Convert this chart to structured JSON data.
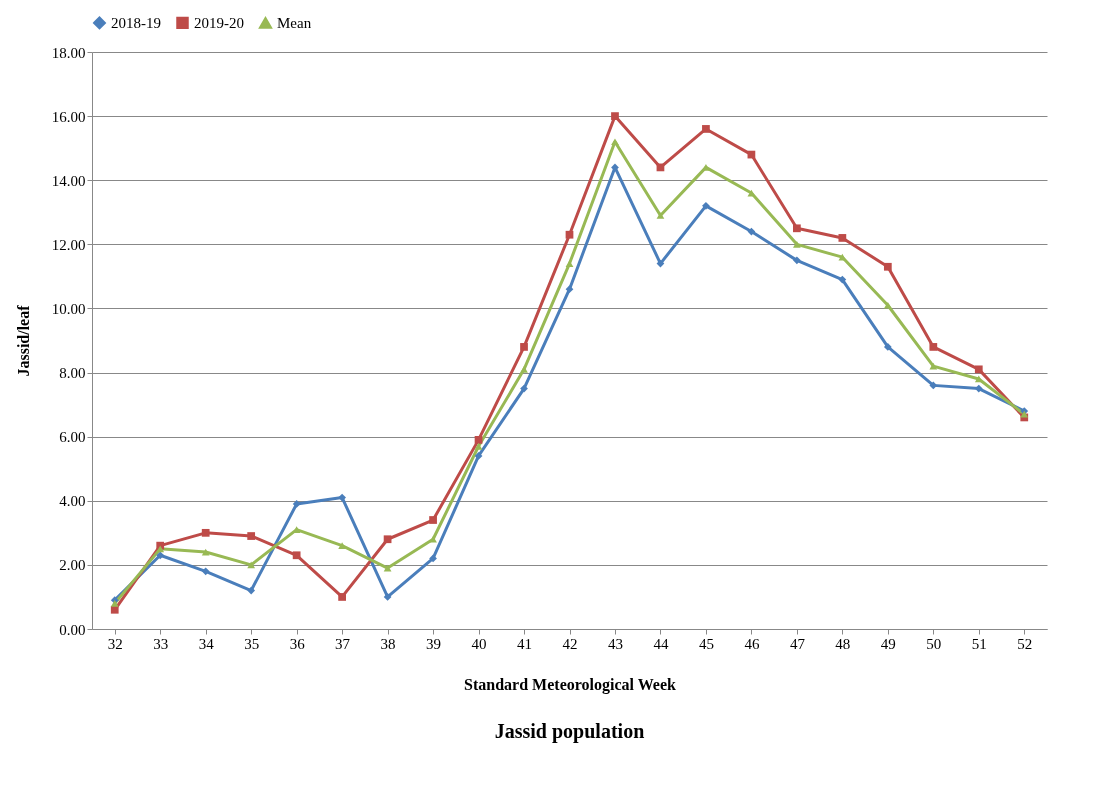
{
  "chart_data": {
    "type": "line",
    "title": "Jassid population",
    "xlabel": "Standard Meteorological Week",
    "ylabel": "Jassid/leaf",
    "categories": [
      "32",
      "33",
      "34",
      "35",
      "36",
      "37",
      "38",
      "39",
      "40",
      "41",
      "42",
      "43",
      "44",
      "45",
      "46",
      "47",
      "48",
      "49",
      "50",
      "51",
      "52"
    ],
    "series": [
      {
        "name": "2018-19",
        "color": "#4a7ebb",
        "marker": "diamond",
        "values": [
          0.9,
          2.3,
          1.8,
          1.2,
          3.9,
          4.1,
          1.0,
          2.2,
          5.4,
          7.5,
          10.6,
          14.4,
          11.4,
          13.2,
          12.4,
          11.5,
          10.9,
          8.8,
          7.6,
          7.5,
          6.8
        ]
      },
      {
        "name": "2019-20",
        "color": "#be4b48",
        "marker": "square",
        "values": [
          0.6,
          2.6,
          3.0,
          2.9,
          2.3,
          1.0,
          2.8,
          3.4,
          5.9,
          8.8,
          12.3,
          16.0,
          14.4,
          15.6,
          14.8,
          12.5,
          12.2,
          11.3,
          8.8,
          8.1,
          6.6
        ]
      },
      {
        "name": "Mean",
        "color": "#98b954",
        "marker": "triangle",
        "values": [
          0.8,
          2.5,
          2.4,
          2.0,
          3.1,
          2.6,
          1.9,
          2.8,
          5.7,
          8.1,
          11.4,
          15.2,
          12.9,
          14.4,
          13.6,
          12.0,
          11.6,
          10.1,
          8.2,
          7.8,
          6.7
        ]
      }
    ],
    "ylim": [
      0,
      18
    ],
    "yticks": [
      {
        "value": 0,
        "label": "0.00"
      },
      {
        "value": 2,
        "label": "2.00"
      },
      {
        "value": 4,
        "label": "4.00"
      },
      {
        "value": 6,
        "label": "6.00"
      },
      {
        "value": 8,
        "label": "8.00"
      },
      {
        "value": 10,
        "label": "10.00"
      },
      {
        "value": 12,
        "label": "12.00"
      },
      {
        "value": 14,
        "label": "14.00"
      },
      {
        "value": 16,
        "label": "16.00"
      },
      {
        "value": 18,
        "label": "18.00"
      }
    ],
    "grid": "y",
    "legend": "top",
    "line_style": "solid"
  }
}
